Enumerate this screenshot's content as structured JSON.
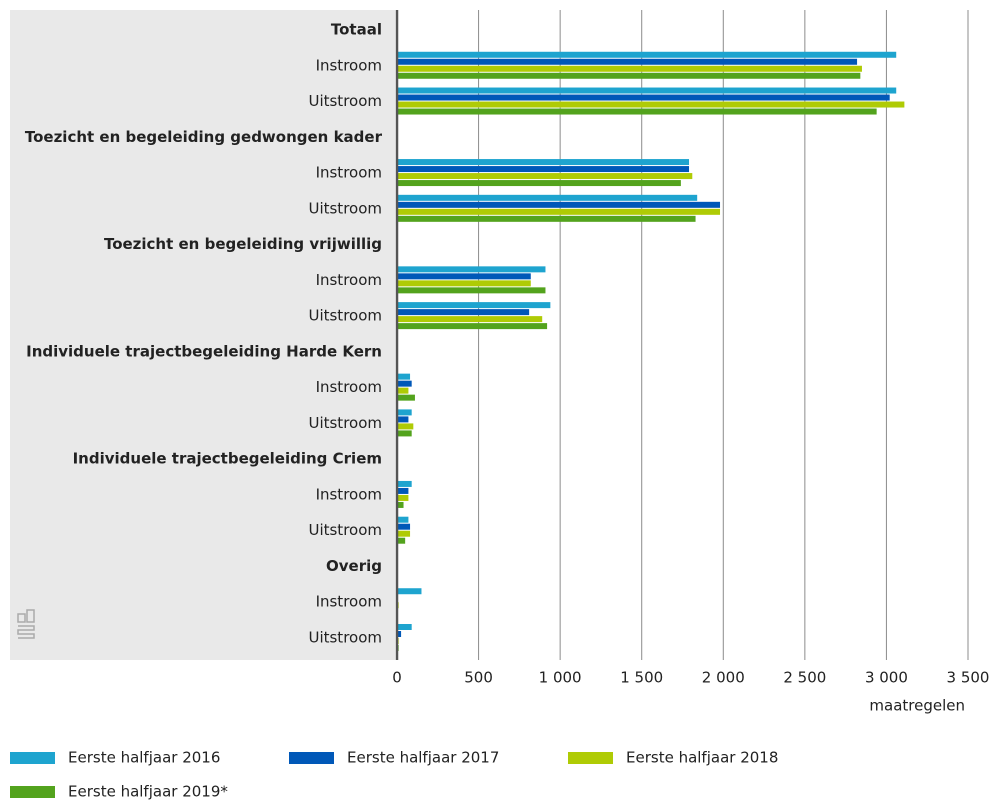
{
  "chart_data": {
    "type": "bar",
    "orientation": "horizontal",
    "groups": [
      {
        "label": "Totaal",
        "categories": [
          "Instroom",
          "Uitstroom"
        ]
      },
      {
        "label": "Toezicht en begeleiding gedwongen kader",
        "categories": [
          "Instroom",
          "Uitstroom"
        ]
      },
      {
        "label": "Toezicht en begeleiding vrijwillig",
        "categories": [
          "Instroom",
          "Uitstroom"
        ]
      },
      {
        "label": "Individuele trajectbegeleiding Harde Kern",
        "categories": [
          "Instroom",
          "Uitstroom"
        ]
      },
      {
        "label": "Individuele trajectbegeleiding Criem",
        "categories": [
          "Instroom",
          "Uitstroom"
        ]
      },
      {
        "label": "Overig",
        "categories": [
          "Instroom",
          "Uitstroom"
        ]
      }
    ],
    "series": [
      {
        "name": "Eerste halfjaar 2016",
        "color": "#1ea4cf",
        "values": [
          3060,
          3060,
          1790,
          1840,
          910,
          940,
          80,
          90,
          90,
          70,
          150,
          90
        ]
      },
      {
        "name": "Eerste halfjaar 2017",
        "color": "#0058b8",
        "values": [
          2820,
          3020,
          1790,
          1980,
          820,
          810,
          90,
          70,
          70,
          80,
          5,
          25
        ]
      },
      {
        "name": "Eerste halfjaar 2018",
        "color": "#afcb05",
        "values": [
          2850,
          3110,
          1810,
          1980,
          820,
          890,
          70,
          100,
          70,
          80,
          10,
          10
        ]
      },
      {
        "name": "Eerste halfjaar 2019*",
        "color": "#53a31d",
        "values": [
          2840,
          2940,
          1740,
          1830,
          910,
          920,
          110,
          90,
          40,
          50,
          5,
          10
        ]
      }
    ],
    "xlabel": "maatregelen",
    "xlim": [
      0,
      3500
    ],
    "xticks": [
      0,
      500,
      {
        "value": 1000,
        "label": "1 000"
      },
      {
        "value": 1500,
        "label": "1 500"
      },
      {
        "value": 2000,
        "label": "2 000"
      },
      {
        "value": 2500,
        "label": "2 500"
      },
      {
        "value": 3000,
        "label": "3 000"
      },
      {
        "value": 3500,
        "label": "3 500"
      }
    ],
    "grid": true
  }
}
